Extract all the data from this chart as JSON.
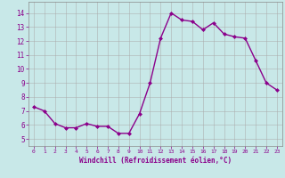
{
  "x": [
    0,
    1,
    2,
    3,
    4,
    5,
    6,
    7,
    8,
    9,
    10,
    11,
    12,
    13,
    14,
    15,
    16,
    17,
    18,
    19,
    20,
    21,
    22,
    23
  ],
  "y": [
    7.3,
    7.0,
    6.1,
    5.8,
    5.8,
    6.1,
    5.9,
    5.9,
    5.4,
    5.4,
    6.8,
    9.0,
    12.2,
    14.0,
    13.5,
    13.4,
    12.8,
    13.3,
    12.5,
    12.3,
    12.2,
    10.6,
    9.0,
    8.5
  ],
  "line_color": "#8B008B",
  "marker": "D",
  "marker_size": 2,
  "linewidth": 1.0,
  "bg_color": "#c8e8e8",
  "grid_color": "#aaaaaa",
  "xlabel": "Windchill (Refroidissement éolien,°C)",
  "xlabel_color": "#8B008B",
  "tick_color": "#8B008B",
  "ylim": [
    4.5,
    14.8
  ],
  "yticks": [
    5,
    6,
    7,
    8,
    9,
    10,
    11,
    12,
    13,
    14
  ],
  "xlim": [
    -0.5,
    23.5
  ],
  "xticks": [
    0,
    1,
    2,
    3,
    4,
    5,
    6,
    7,
    8,
    9,
    10,
    11,
    12,
    13,
    14,
    15,
    16,
    17,
    18,
    19,
    20,
    21,
    22,
    23
  ]
}
